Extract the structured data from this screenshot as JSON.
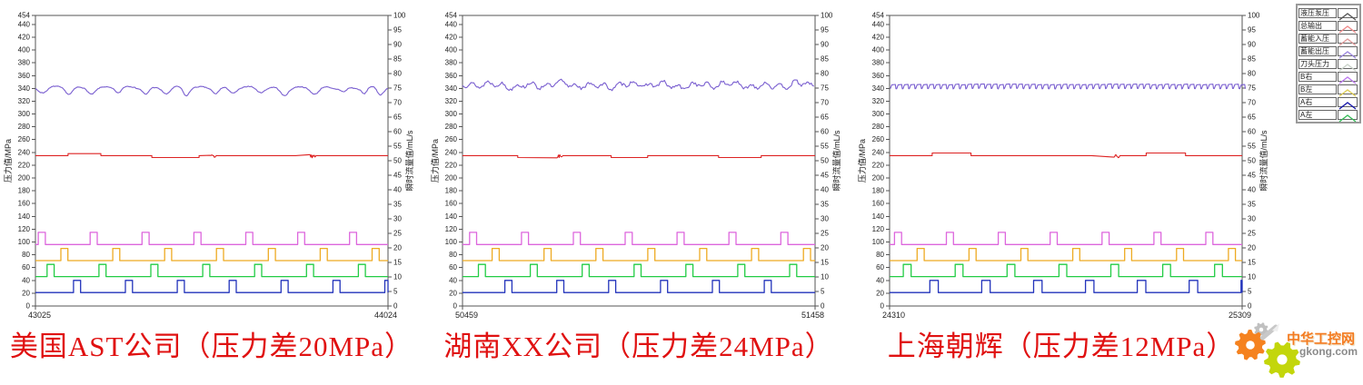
{
  "page": {
    "background": "#ffffff"
  },
  "axes": {
    "left_ticks": [
      0,
      20,
      40,
      60,
      80,
      100,
      120,
      140,
      160,
      180,
      200,
      220,
      240,
      260,
      280,
      300,
      320,
      340,
      360,
      380,
      400,
      420,
      440,
      454
    ],
    "right_ticks": [
      0,
      5,
      10,
      15,
      20,
      25,
      30,
      35,
      40,
      45,
      50,
      55,
      60,
      65,
      70,
      75,
      80,
      85,
      90,
      95,
      100
    ],
    "left_max": 454,
    "right_max": 100,
    "grid": false
  },
  "legend": {
    "items": [
      {
        "label": "液压泵压",
        "color": "#555555"
      },
      {
        "label": "总输出",
        "color": "#ee8a8a"
      },
      {
        "label": "蓄能入压",
        "color": "#dd9a9a"
      },
      {
        "label": "蓄能出压",
        "color": "#9a85dd"
      },
      {
        "label": "刀头压力",
        "color": "#c9d2c9"
      },
      {
        "label": "B右",
        "color": "#bb77ee"
      },
      {
        "label": "B左",
        "color": "#ddcc55"
      },
      {
        "label": "A右",
        "color": "#1515aa"
      },
      {
        "label": "A左",
        "color": "#33bb55"
      }
    ]
  },
  "watermark": {
    "line1": "中华工控网",
    "line2": "gkong.com",
    "gear_orange": "#f5821f",
    "gear_green": "#c3d60b",
    "gear_gray": "#c0c0c0"
  },
  "chart_data": [
    {
      "type": "line",
      "title": "美国AST公司（压力差20MPa）",
      "x_range": [
        43025,
        44024
      ],
      "y_left": {
        "label": "压力值/MPa",
        "lim": [
          0,
          454
        ]
      },
      "y_right": {
        "label": "瞬时流量值/mL/s",
        "lim": [
          0,
          100
        ]
      },
      "series": [
        {
          "name": "蓄能出压",
          "color": "#7a5fd0",
          "pattern": "wavy_dips",
          "base": 341,
          "dip_depth": 11,
          "dip_gap": 62,
          "ripple": 1.6
        },
        {
          "name": "总输出",
          "color": "#dd2222",
          "pattern": "stepped",
          "base": 235,
          "step": 3,
          "bias": 0,
          "clusters": 2
        },
        {
          "name": "B右",
          "color": "#dd66dd",
          "pattern": "pulse",
          "base": 96,
          "peak": 115,
          "period": 147,
          "width": 20,
          "offset": 8
        },
        {
          "name": "B左",
          "color": "#eeaa22",
          "pattern": "pulse",
          "base": 71,
          "peak": 90,
          "period": 147,
          "width": 20,
          "offset": 72
        },
        {
          "name": "A左",
          "color": "#22cc44",
          "pattern": "pulse",
          "base": 46,
          "peak": 65,
          "period": 147,
          "width": 20,
          "offset": 33
        },
        {
          "name": "A右",
          "color": "#2233bb",
          "pattern": "pulse",
          "base": 21,
          "peak": 40,
          "period": 147,
          "width": 20,
          "offset": 108
        }
      ]
    },
    {
      "type": "line",
      "title": "湖南XX公司（压力差24MPa）",
      "x_range": [
        50459,
        51458
      ],
      "y_left": {
        "label": "压力值/MPa",
        "lim": [
          0,
          454
        ]
      },
      "y_right": {
        "label": "瞬时流量值/mL/s",
        "lim": [
          0,
          100
        ]
      },
      "series": [
        {
          "name": "蓄能出压",
          "color": "#7a5fd0",
          "pattern": "noisy",
          "base": 345,
          "amp": 5,
          "ripple": 2.5
        },
        {
          "name": "总输出",
          "color": "#dd2222",
          "pattern": "stepped",
          "base": 235,
          "step": 3,
          "bias": -1,
          "clusters": 1
        },
        {
          "name": "B右",
          "color": "#dd66dd",
          "pattern": "pulse",
          "base": 96,
          "peak": 115,
          "period": 147,
          "width": 20,
          "offset": 20
        },
        {
          "name": "B左",
          "color": "#eeaa22",
          "pattern": "pulse",
          "base": 71,
          "peak": 90,
          "period": 147,
          "width": 20,
          "offset": 84
        },
        {
          "name": "A左",
          "color": "#22cc44",
          "pattern": "pulse",
          "base": 46,
          "peak": 65,
          "period": 147,
          "width": 20,
          "offset": 45
        },
        {
          "name": "A右",
          "color": "#2233bb",
          "pattern": "pulse",
          "base": 21,
          "peak": 40,
          "period": 147,
          "width": 20,
          "offset": 120
        }
      ]
    },
    {
      "type": "line",
      "title": "上海朝辉（压力差12MPa）",
      "x_range": [
        24310,
        25309
      ],
      "y_left": {
        "label": "压力值/MPa",
        "lim": [
          0,
          454
        ]
      },
      "y_right": {
        "label": "瞬时流量值/mL/s",
        "lim": [
          0,
          100
        ]
      },
      "series": [
        {
          "name": "蓄能出压",
          "color": "#7a5fd0",
          "pattern": "sawtooth",
          "base": 344,
          "amp": 6,
          "period": 18
        },
        {
          "name": "总输出",
          "color": "#dd2222",
          "pattern": "stepped",
          "base": 235,
          "step": 4,
          "bias": 1,
          "clusters": 1
        },
        {
          "name": "B右",
          "color": "#dd66dd",
          "pattern": "pulse",
          "base": 96,
          "peak": 115,
          "period": 147,
          "width": 20,
          "offset": 14
        },
        {
          "name": "B左",
          "color": "#eeaa22",
          "pattern": "pulse",
          "base": 71,
          "peak": 90,
          "period": 147,
          "width": 20,
          "offset": 78
        },
        {
          "name": "A左",
          "color": "#22cc44",
          "pattern": "pulse",
          "base": 46,
          "peak": 65,
          "period": 147,
          "width": 22,
          "offset": 39
        },
        {
          "name": "A右",
          "color": "#2233bb",
          "pattern": "pulse",
          "base": 21,
          "peak": 40,
          "period": 147,
          "width": 24,
          "offset": 114
        }
      ]
    }
  ]
}
